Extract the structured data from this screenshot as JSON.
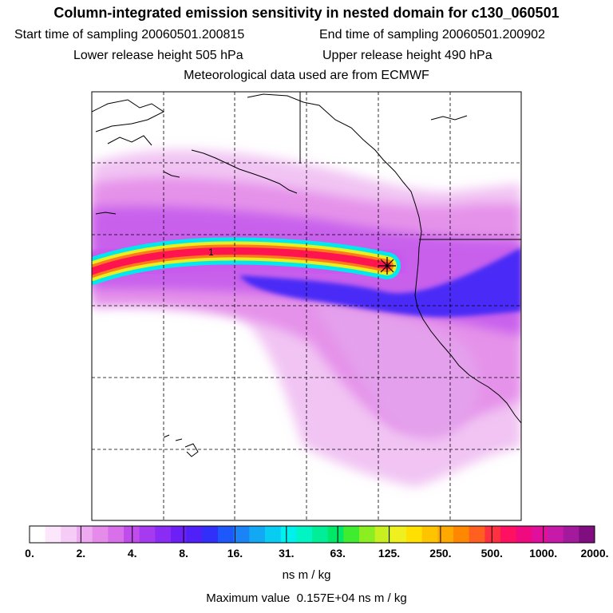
{
  "header": {
    "title": "Column-integrated emission sensitivity in nested domain for c130_060501",
    "start_label": "Start time of sampling",
    "start_value": "20060501.200815",
    "end_label": "End time of sampling",
    "end_value": "20060501.200902",
    "lower_label": "Lower release height",
    "lower_value": "505 hPa",
    "upper_label": "Upper release height",
    "upper_value": "490 hPa",
    "met_line": "Meteorological data used are from ECMWF"
  },
  "map": {
    "release_marker_label": "1"
  },
  "colorbar": {
    "tick_labels": [
      "0.",
      "2.",
      "4.",
      "8.",
      "16.",
      "31.",
      "63.",
      "125.",
      "250.",
      "500.",
      "1000.",
      "2000."
    ],
    "colors": [
      "#ffffff",
      "#fbe6fb",
      "#f5ccf5",
      "#eeaaf0",
      "#e58ceb",
      "#d870ea",
      "#c04cec",
      "#a53af0",
      "#8a2cf4",
      "#6c20f6",
      "#4f20f8",
      "#3030fa",
      "#1c58fa",
      "#1a84f6",
      "#12a8f4",
      "#08ccf2",
      "#00f0ee",
      "#00f4c4",
      "#00ee98",
      "#00e868",
      "#40ec30",
      "#8aee20",
      "#c8f020",
      "#f0f020",
      "#ffe000",
      "#ffc400",
      "#ffa800",
      "#ff8800",
      "#ff6020",
      "#ff3040",
      "#ff1060",
      "#f00a80",
      "#e0109c",
      "#c81aa8",
      "#a41a9c",
      "#800e80"
    ],
    "units": "ns m / kg"
  },
  "footer": {
    "max_label": "Maximum value",
    "max_value": "0.157E+04 ns m / kg"
  }
}
